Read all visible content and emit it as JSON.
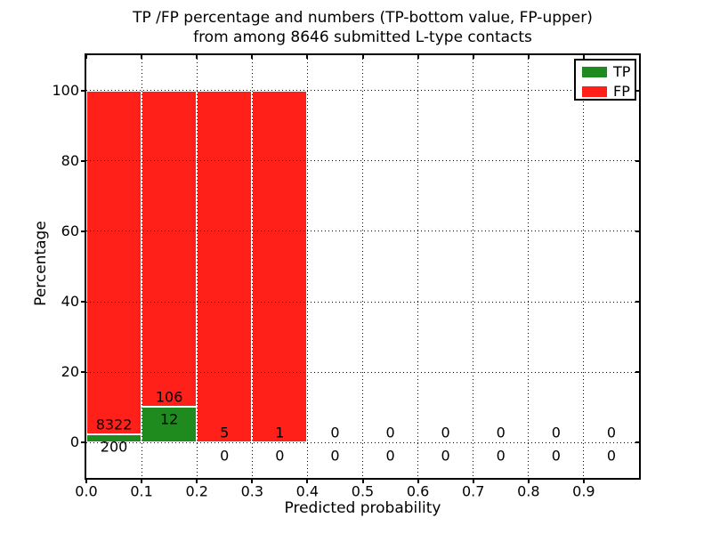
{
  "figure": {
    "kind": "matplotlib-style stacked bar chart",
    "background": "#ffffff",
    "frame_color": "#000000"
  },
  "chart_data": {
    "type": "bar",
    "stacked": true,
    "title_lines": [
      "TP /FP percentage and numbers (TP-bottom value, FP-upper)",
      "from among 8646 submitted L-type contacts"
    ],
    "title": "TP /FP percentage and numbers (TP-bottom value, FP-upper) from among 8646 submitted L-type contacts",
    "xlabel": "Predicted probability",
    "ylabel": "Percentage",
    "total_contacts": 8646,
    "xlim": [
      0.0,
      1.0
    ],
    "ylim": [
      -10,
      110
    ],
    "grid": "dotted",
    "x_ticks": [
      {
        "value": 0.0,
        "label": "0.0"
      },
      {
        "value": 0.1,
        "label": "0.1"
      },
      {
        "value": 0.2,
        "label": "0.2"
      },
      {
        "value": 0.3,
        "label": "0.3"
      },
      {
        "value": 0.4,
        "label": "0.4"
      },
      {
        "value": 0.5,
        "label": "0.5"
      },
      {
        "value": 0.6,
        "label": "0.6"
      },
      {
        "value": 0.7,
        "label": "0.7"
      },
      {
        "value": 0.8,
        "label": "0.8"
      },
      {
        "value": 0.9,
        "label": "0.9"
      }
    ],
    "y_ticks": [
      {
        "value": 0,
        "label": "0"
      },
      {
        "value": 20,
        "label": "20"
      },
      {
        "value": 40,
        "label": "40"
      },
      {
        "value": 60,
        "label": "60"
      },
      {
        "value": 80,
        "label": "80"
      },
      {
        "value": 100,
        "label": "100"
      }
    ],
    "legend": {
      "position": "upper-right",
      "items": [
        {
          "label": "TP",
          "color": "#1f8b1f"
        },
        {
          "label": "FP",
          "color": "#ff2019"
        }
      ]
    },
    "series_note": "Each bin stacks TP% (green, bottom) and FP% (red, top) to 100%; labels show raw counts: FP count above the TP bar top, TP count below it",
    "bins": [
      {
        "range": [
          0.0,
          0.1
        ],
        "tp": 200,
        "fp": 8322
      },
      {
        "range": [
          0.1,
          0.2
        ],
        "tp": 12,
        "fp": 106
      },
      {
        "range": [
          0.2,
          0.3
        ],
        "tp": 0,
        "fp": 5
      },
      {
        "range": [
          0.3,
          0.4
        ],
        "tp": 0,
        "fp": 1
      },
      {
        "range": [
          0.4,
          0.5
        ],
        "tp": 0,
        "fp": 0
      },
      {
        "range": [
          0.5,
          0.6
        ],
        "tp": 0,
        "fp": 0
      },
      {
        "range": [
          0.6,
          0.7
        ],
        "tp": 0,
        "fp": 0
      },
      {
        "range": [
          0.7,
          0.8
        ],
        "tp": 0,
        "fp": 0
      },
      {
        "range": [
          0.8,
          0.9
        ],
        "tp": 0,
        "fp": 0
      },
      {
        "range": [
          0.9,
          1.0
        ],
        "tp": 0,
        "fp": 0
      }
    ]
  }
}
